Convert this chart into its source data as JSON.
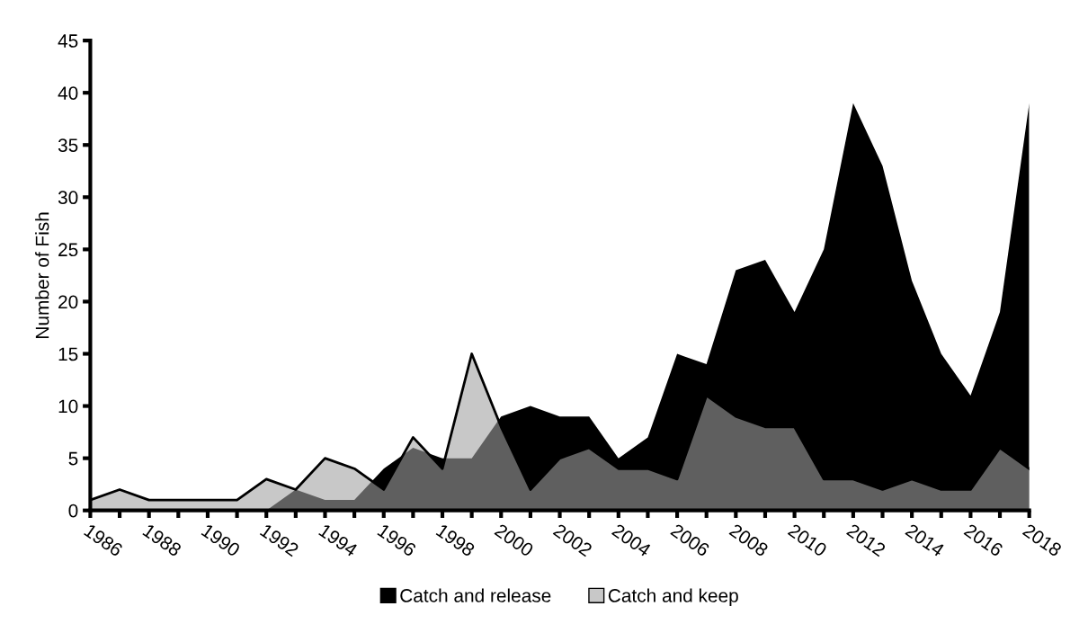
{
  "chart_data": {
    "type": "area",
    "ylabel": "Number of Fish",
    "categories": [
      "1986",
      null,
      "1988",
      null,
      "1990",
      null,
      "1992",
      null,
      "1994",
      null,
      "1996",
      null,
      "1998",
      null,
      "2000",
      null,
      "2002",
      null,
      "2004",
      null,
      "2006",
      null,
      "2008",
      null,
      "2010",
      null,
      "2012",
      null,
      "2014",
      null,
      "2016",
      null,
      "2018"
    ],
    "series": [
      {
        "name": "Catch and release",
        "color": "#000000",
        "values": [
          0,
          0,
          0,
          0,
          0,
          0,
          0,
          2,
          1,
          1,
          4,
          6,
          5,
          5,
          9,
          10,
          9,
          9,
          5,
          7,
          15,
          14,
          23,
          24,
          19,
          25,
          39,
          33,
          22,
          15,
          11,
          19,
          39
        ]
      },
      {
        "name": "Catch and keep",
        "color": "#c8c8c8",
        "values": [
          1,
          2,
          1,
          1,
          1,
          1,
          3,
          2,
          5,
          4,
          2,
          7,
          4,
          15,
          8,
          2,
          5,
          6,
          4,
          4,
          3,
          11,
          9,
          8,
          8,
          3,
          3,
          2,
          3,
          2,
          2,
          6,
          4
        ]
      }
    ],
    "ylim": [
      0,
      45
    ],
    "yticks": [
      0,
      5,
      10,
      15,
      20,
      25,
      30,
      35,
      40,
      45
    ],
    "grid": false,
    "legend": "bottom"
  }
}
